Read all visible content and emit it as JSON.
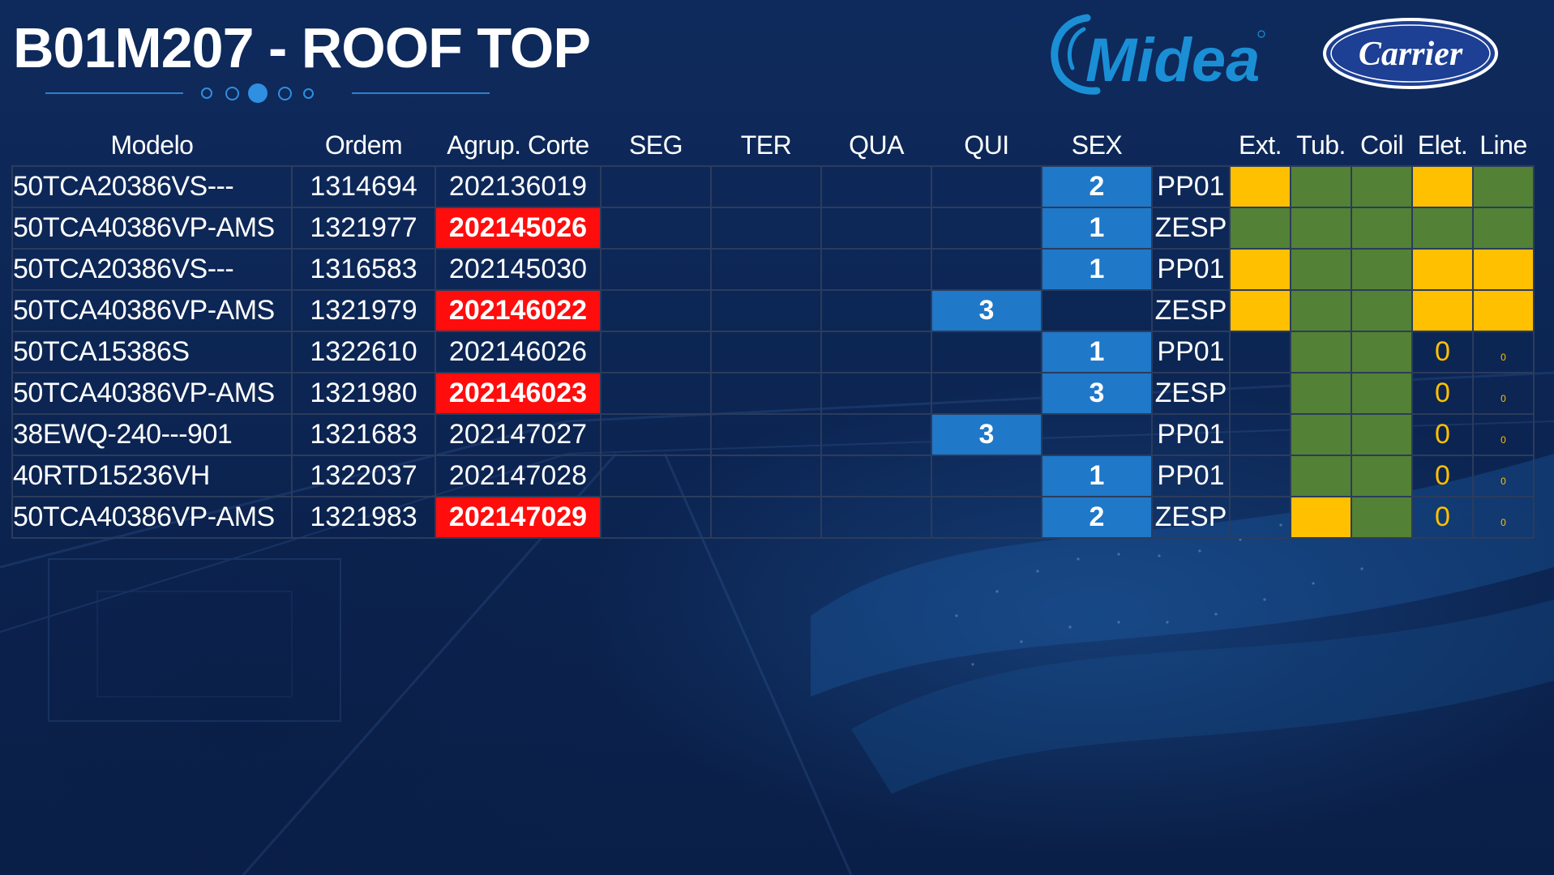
{
  "header": {
    "title": "B01M207 - ROOF TOP",
    "pager": {
      "count": 5,
      "active_index": 2
    }
  },
  "logos": {
    "midea": "Midea",
    "carrier": "Carrier"
  },
  "colors": {
    "background": "#0c2553",
    "day_active": "#1f78c8",
    "alert_red": "#ff0d0d",
    "status_yellow": "#ffc000",
    "status_green": "#538135",
    "brand_midea": "#1a8fd6",
    "brand_carrier": "#1d3f94"
  },
  "table": {
    "headers": [
      "Modelo",
      "Ordem",
      "Agrup. Corte",
      "SEG",
      "TER",
      "QUA",
      "QUI",
      "SEX",
      "",
      "Ext.",
      "Tub.",
      "Coil",
      "Elet.",
      "Line"
    ],
    "rows": [
      {
        "modelo": "50TCA20386VS---",
        "ordem": "1314694",
        "corte": "202136019",
        "corte_alert": false,
        "days": [
          "",
          "",
          "",
          "",
          "2"
        ],
        "linha": "PP01",
        "status": [
          "yellow",
          "green",
          "green",
          "yellow",
          "green"
        ],
        "status_text": [
          "",
          "",
          "",
          "",
          ""
        ]
      },
      {
        "modelo": "50TCA40386VP-AMS",
        "ordem": "1321977",
        "corte": "202145026",
        "corte_alert": true,
        "days": [
          "",
          "",
          "",
          "",
          "1"
        ],
        "linha": "ZESP",
        "status": [
          "green",
          "green",
          "green",
          "green",
          "green"
        ],
        "status_text": [
          "",
          "",
          "",
          "",
          ""
        ]
      },
      {
        "modelo": "50TCA20386VS---",
        "ordem": "1316583",
        "corte": "202145030",
        "corte_alert": false,
        "days": [
          "",
          "",
          "",
          "",
          "1"
        ],
        "linha": "PP01",
        "status": [
          "yellow",
          "green",
          "green",
          "yellow",
          "yellow"
        ],
        "status_text": [
          "",
          "",
          "",
          "",
          ""
        ]
      },
      {
        "modelo": "50TCA40386VP-AMS",
        "ordem": "1321979",
        "corte": "202146022",
        "corte_alert": true,
        "days": [
          "",
          "",
          "",
          "3",
          ""
        ],
        "linha": "ZESP",
        "status": [
          "yellow",
          "green",
          "green",
          "yellow",
          "yellow"
        ],
        "status_text": [
          "",
          "",
          "",
          "",
          ""
        ]
      },
      {
        "modelo": "50TCA15386S",
        "ordem": "1322610",
        "corte": "202146026",
        "corte_alert": false,
        "days": [
          "",
          "",
          "",
          "",
          "1"
        ],
        "linha": "PP01",
        "status": [
          "none",
          "green",
          "green",
          "none",
          "none"
        ],
        "status_text": [
          "",
          "",
          "",
          "0",
          "0"
        ]
      },
      {
        "modelo": "50TCA40386VP-AMS",
        "ordem": "1321980",
        "corte": "202146023",
        "corte_alert": true,
        "days": [
          "",
          "",
          "",
          "",
          "3"
        ],
        "linha": "ZESP",
        "status": [
          "none",
          "green",
          "green",
          "none",
          "none"
        ],
        "status_text": [
          "",
          "",
          "",
          "0",
          "0"
        ]
      },
      {
        "modelo": "38EWQ-240---901",
        "ordem": "1321683",
        "corte": "202147027",
        "corte_alert": false,
        "days": [
          "",
          "",
          "",
          "3",
          ""
        ],
        "linha": "PP01",
        "status": [
          "none",
          "green",
          "green",
          "none",
          "none"
        ],
        "status_text": [
          "",
          "",
          "",
          "0",
          "0"
        ]
      },
      {
        "modelo": "40RTD15236VH",
        "ordem": "1322037",
        "corte": "202147028",
        "corte_alert": false,
        "days": [
          "",
          "",
          "",
          "",
          "1"
        ],
        "linha": "PP01",
        "status": [
          "none",
          "green",
          "green",
          "none",
          "none"
        ],
        "status_text": [
          "",
          "",
          "",
          "0",
          "0"
        ]
      },
      {
        "modelo": "50TCA40386VP-AMS",
        "ordem": "1321983",
        "corte": "202147029",
        "corte_alert": true,
        "days": [
          "",
          "",
          "",
          "",
          "2"
        ],
        "linha": "ZESP",
        "status": [
          "none",
          "yellow",
          "green",
          "none",
          "none"
        ],
        "status_text": [
          "",
          "",
          "",
          "0",
          "0"
        ]
      }
    ]
  }
}
